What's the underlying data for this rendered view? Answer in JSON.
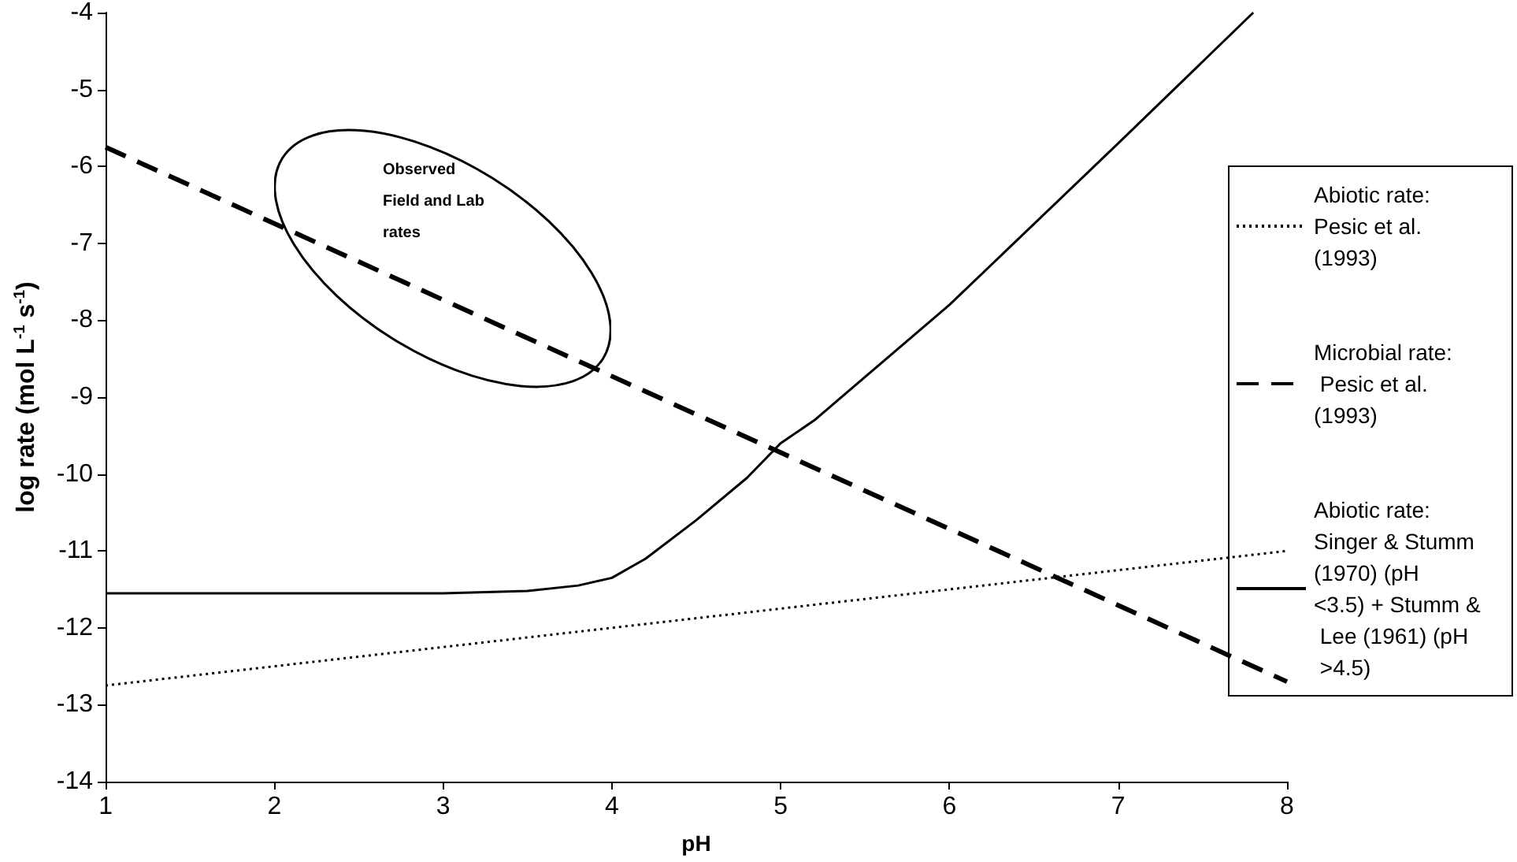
{
  "chart_data": {
    "type": "line",
    "xlabel": "pH",
    "ylabel": "log rate (mol L$^{-1}$ s$^{-1}$)",
    "xlim": [
      1,
      8
    ],
    "ylim": [
      -14,
      -4
    ],
    "xticks": [
      1,
      2,
      3,
      4,
      5,
      6,
      7,
      8
    ],
    "yticks": [
      -14,
      -13,
      -12,
      -11,
      -10,
      -9,
      -8,
      -7,
      -6,
      -5,
      -4
    ],
    "grid": false,
    "legend": "right",
    "marker": "none",
    "annotations": [
      "Observed Field and Lab rates"
    ],
    "series": [
      {
        "name": "Abiotic rate: Pesic et al. (1993)",
        "color": "#000000",
        "line_style": "dotted",
        "x": [
          1,
          8
        ],
        "values": [
          -12.75,
          -11
        ]
      },
      {
        "name": "Microbial rate: Pesic et al. (1993)",
        "color": "#000000",
        "line_style": "dashed",
        "x": [
          1,
          8
        ],
        "values": [
          -5.75,
          -12.7
        ]
      },
      {
        "name": "Abiotic rate: Singer & Stumm (1970) (pH <3.5) + Stumm & Lee (1961) (pH >4.5)",
        "color": "#000000",
        "line_style": "solid",
        "x": [
          1,
          2,
          3,
          3.5,
          3.8,
          4,
          4.2,
          4.5,
          4.8,
          5,
          5.2,
          6,
          7,
          7.8
        ],
        "values": [
          -11.55,
          -11.55,
          -11.55,
          -11.52,
          -11.45,
          -11.35,
          -11.1,
          -10.6,
          -10.05,
          -9.6,
          -9.3,
          -7.8,
          -5.7,
          -4
        ]
      }
    ]
  }
}
